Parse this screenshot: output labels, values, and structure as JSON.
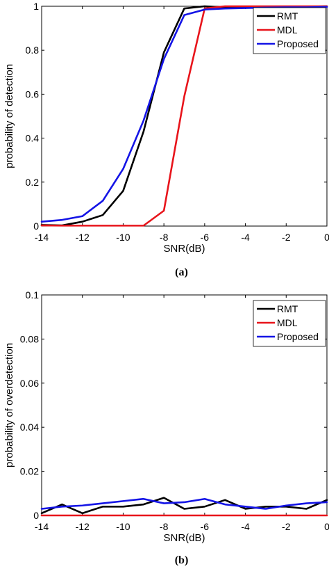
{
  "chart_data": [
    {
      "type": "line",
      "panel_label": "(a)",
      "xlabel": "SNR(dB)",
      "ylabel": "probability of detection",
      "xlim": [
        -14,
        0
      ],
      "ylim": [
        0,
        1
      ],
      "xticks": [
        -14,
        -12,
        -10,
        -8,
        -6,
        -4,
        -2,
        0
      ],
      "yticks": [
        0,
        0.2,
        0.4,
        0.6,
        0.8,
        1
      ],
      "xtick_labels": [
        "-14",
        "-12",
        "-10",
        "-8",
        "-6",
        "-4",
        "-2",
        "0"
      ],
      "ytick_labels": [
        "0",
        "0.2",
        "0.4",
        "0.6",
        "0.8",
        "1"
      ],
      "legend_position": "top-right",
      "x": [
        -14,
        -13,
        -12,
        -11,
        -10,
        -9,
        -8,
        -7,
        -6,
        -5,
        -4,
        -3,
        -2,
        -1,
        0
      ],
      "series": [
        {
          "name": "RMT",
          "color": "#000000",
          "values": [
            0.005,
            0.003,
            0.02,
            0.05,
            0.16,
            0.43,
            0.79,
            0.99,
            1.0,
            0.995,
            0.995,
            0.997,
            0.997,
            0.998,
            1.0
          ]
        },
        {
          "name": "MDL",
          "color": "#e8141b",
          "values": [
            0.003,
            0.002,
            0.002,
            0.002,
            0.002,
            0.002,
            0.07,
            0.59,
            0.99,
            1.0,
            1.0,
            1.0,
            1.0,
            1.0,
            1.0
          ]
        },
        {
          "name": "Proposed",
          "color": "#1414e6",
          "values": [
            0.02,
            0.028,
            0.045,
            0.115,
            0.26,
            0.48,
            0.76,
            0.96,
            0.985,
            0.99,
            0.992,
            0.994,
            0.995,
            0.995,
            0.997
          ]
        }
      ]
    },
    {
      "type": "line",
      "panel_label": "(b)",
      "xlabel": "SNR(dB)",
      "ylabel": "probability of overdetection",
      "xlim": [
        -14,
        0
      ],
      "ylim": [
        0,
        0.1
      ],
      "xticks": [
        -14,
        -12,
        -10,
        -8,
        -6,
        -4,
        -2,
        0
      ],
      "yticks": [
        0,
        0.02,
        0.04,
        0.06,
        0.08,
        0.1
      ],
      "xtick_labels": [
        "-14",
        "-12",
        "-10",
        "-8",
        "-6",
        "-4",
        "-2",
        "0"
      ],
      "ytick_labels": [
        "0",
        "0.02",
        "0.04",
        "0.06",
        "0.08",
        "0.1"
      ],
      "legend_position": "top-right",
      "x": [
        -14,
        -13,
        -12,
        -11,
        -10,
        -9,
        -8,
        -7,
        -6,
        -5,
        -4,
        -3,
        -2,
        -1,
        0
      ],
      "series": [
        {
          "name": "RMT",
          "color": "#000000",
          "values": [
            0.001,
            0.005,
            0.001,
            0.004,
            0.004,
            0.005,
            0.008,
            0.003,
            0.004,
            0.007,
            0.003,
            0.004,
            0.004,
            0.003,
            0.007
          ]
        },
        {
          "name": "MDL",
          "color": "#e8141b",
          "values": [
            0,
            0,
            0,
            0,
            0,
            0,
            0,
            0,
            0,
            0,
            0,
            0,
            0,
            0,
            0
          ]
        },
        {
          "name": "Proposed",
          "color": "#1414e6",
          "values": [
            0.003,
            0.004,
            0.0045,
            0.0055,
            0.0065,
            0.0075,
            0.0055,
            0.006,
            0.0075,
            0.005,
            0.004,
            0.003,
            0.0045,
            0.0055,
            0.006
          ]
        }
      ]
    }
  ]
}
